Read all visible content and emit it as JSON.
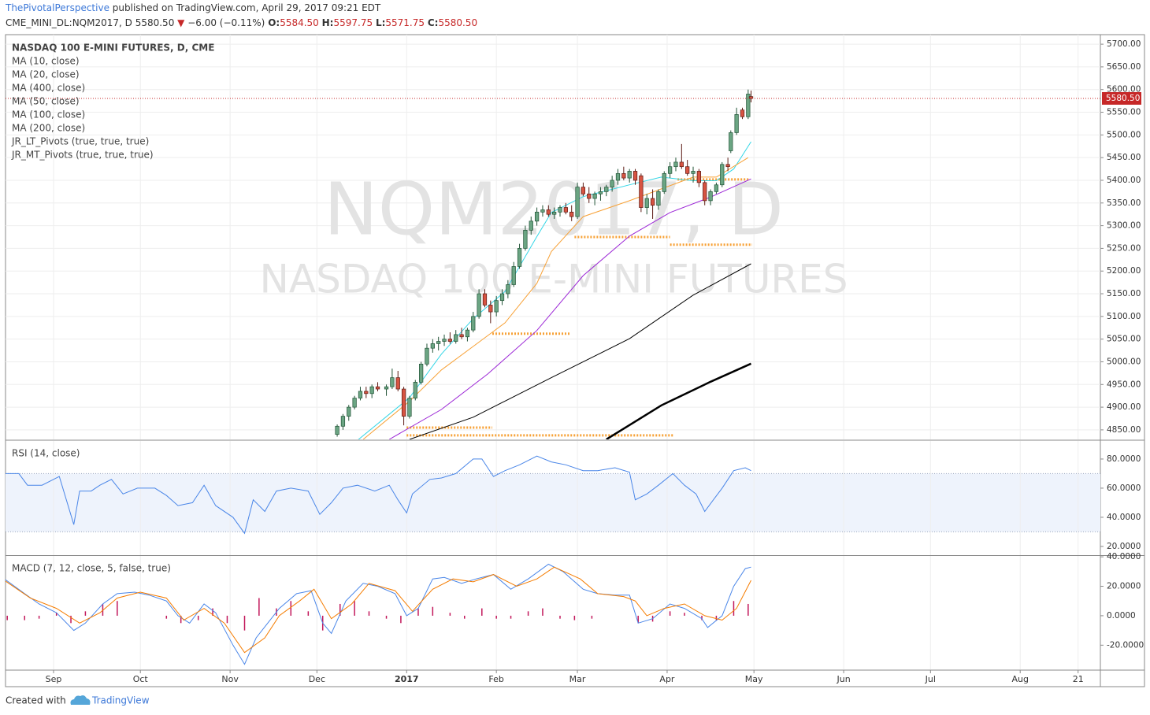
{
  "header": {
    "author": "ThePivotalPerspective",
    "published": "published on TradingView.com, April 29, 2017 09:21 EDT",
    "symbol": "CME_MINI_DL:NQM2017, D",
    "last": "5580.50",
    "arrow": "▼",
    "change": "−6.00 (−0.11%)",
    "o_key": "O:",
    "o": "5584.50",
    "h_key": "H:",
    "h": "5597.75",
    "l_key": "L:",
    "l": "5571.75",
    "c_key": "C:",
    "c": "5580.50"
  },
  "footer": {
    "created": "Created with",
    "brand": "TradingView"
  },
  "chart_data": [
    {
      "type": "candlestick",
      "legend": [
        "NASDAQ 100 E-MINI FUTURES, D, CME",
        "MA (10, close)",
        "MA (20, close)",
        "MA (400, close)",
        "MA (50, close)",
        "MA (100, close)",
        "MA (200, close)",
        "JR_LT_Pivots (true, true, true)",
        "JR_MT_Pivots (true, true, true)"
      ],
      "watermark": [
        "NQM2017, D",
        "NASDAQ 100 E-MINI FUTURES"
      ],
      "xlim": [
        -16.6,
        361.7
      ],
      "xticks": [
        {
          "value": 0,
          "label": "Sep"
        },
        {
          "value": 30,
          "label": "Oct"
        },
        {
          "value": 61,
          "label": "Nov"
        },
        {
          "value": 91,
          "label": "Dec"
        },
        {
          "value": 122,
          "label": "2017"
        },
        {
          "value": 153,
          "label": "Feb"
        },
        {
          "value": 181,
          "label": "Mar"
        },
        {
          "value": 212,
          "label": "Apr"
        },
        {
          "value": 242,
          "label": "May"
        },
        {
          "value": 273,
          "label": "Jun"
        },
        {
          "value": 303,
          "label": "Jul"
        },
        {
          "value": 334,
          "label": "Aug"
        },
        {
          "value": 354,
          "label": "21"
        }
      ],
      "ylim": [
        4829,
        5721
      ],
      "yticks": [
        {
          "value": 4850,
          "label": "4850.00"
        },
        {
          "value": 4900,
          "label": "4900.00"
        },
        {
          "value": 4950,
          "label": "4950.00"
        },
        {
          "value": 5000,
          "label": "5000.00"
        },
        {
          "value": 5050,
          "label": "5050.00"
        },
        {
          "value": 5100,
          "label": "5100.00"
        },
        {
          "value": 5150,
          "label": "5150.00"
        },
        {
          "value": 5200,
          "label": "5200.00"
        },
        {
          "value": 5250,
          "label": "5250.00"
        },
        {
          "value": 5300,
          "label": "5300.00"
        },
        {
          "value": 5350,
          "label": "5350.00"
        },
        {
          "value": 5400,
          "label": "5400.00"
        },
        {
          "value": 5450,
          "label": "5450.00"
        },
        {
          "value": 5500,
          "label": "5500.00"
        },
        {
          "value": 5550,
          "label": "5550.00"
        },
        {
          "value": 5600,
          "label": "5600.00"
        },
        {
          "value": 5650,
          "label": "5650.00"
        },
        {
          "value": 5700,
          "label": "5700.00"
        }
      ],
      "grid": true,
      "up_color": "#6ba583",
      "down_color": "#d75442",
      "last_price": {
        "value": 5580.5,
        "label": "5580.50",
        "color": "#c62828"
      },
      "x": [
        98,
        100,
        102,
        104,
        106,
        108,
        110,
        112,
        115,
        117,
        119,
        121,
        123,
        125,
        127,
        129,
        131,
        133,
        135,
        137,
        139,
        141,
        143,
        145,
        147,
        149,
        151,
        153,
        155,
        157,
        159,
        161,
        163,
        165,
        167,
        169,
        171,
        173,
        175,
        177,
        179,
        181,
        183,
        185,
        187,
        189,
        191,
        193,
        195,
        197,
        199,
        201,
        203,
        205,
        207,
        209,
        211,
        213,
        215,
        217,
        219,
        221,
        223,
        225,
        227,
        229,
        231,
        233,
        234,
        236,
        238,
        240,
        241
      ],
      "open": [
        4840,
        4858,
        4880,
        4900,
        4920,
        4935,
        4930,
        4945,
        4940,
        4945,
        4965,
        4940,
        4880,
        4920,
        4955,
        4995,
        5030,
        5040,
        5045,
        5050,
        5045,
        5060,
        5055,
        5070,
        5100,
        5150,
        5125,
        5110,
        5135,
        5150,
        5170,
        5210,
        5250,
        5290,
        5310,
        5330,
        5335,
        5325,
        5330,
        5340,
        5330,
        5320,
        5385,
        5370,
        5360,
        5370,
        5375,
        5385,
        5400,
        5415,
        5405,
        5420,
        5410,
        5340,
        5360,
        5345,
        5375,
        5415,
        5430,
        5440,
        5430,
        5415,
        5420,
        5395,
        5355,
        5375,
        5390,
        5435,
        5465,
        5505,
        5555,
        5540,
        5584.5
      ],
      "high": [
        4862,
        4885,
        4905,
        4925,
        4945,
        4945,
        4950,
        4955,
        4950,
        4985,
        4980,
        4945,
        4925,
        4960,
        5000,
        5040,
        5050,
        5055,
        5060,
        5065,
        5070,
        5075,
        5075,
        5110,
        5160,
        5160,
        5135,
        5145,
        5160,
        5180,
        5220,
        5260,
        5300,
        5320,
        5340,
        5345,
        5345,
        5340,
        5345,
        5350,
        5345,
        5395,
        5395,
        5385,
        5375,
        5385,
        5390,
        5410,
        5425,
        5430,
        5425,
        5425,
        5415,
        5370,
        5380,
        5380,
        5420,
        5440,
        5450,
        5480,
        5445,
        5430,
        5425,
        5400,
        5380,
        5395,
        5440,
        5450,
        5510,
        5560,
        5560,
        5600,
        5597.75
      ],
      "low": [
        4835,
        4850,
        4870,
        4895,
        4915,
        4920,
        4920,
        4935,
        4925,
        4940,
        4935,
        4860,
        4875,
        4915,
        4950,
        4990,
        5020,
        5025,
        5035,
        5040,
        5040,
        5050,
        5045,
        5065,
        5095,
        5120,
        5085,
        5100,
        5125,
        5140,
        5165,
        5205,
        5245,
        5280,
        5300,
        5320,
        5320,
        5315,
        5320,
        5325,
        5310,
        5315,
        5365,
        5350,
        5345,
        5355,
        5365,
        5375,
        5390,
        5400,
        5395,
        5390,
        5330,
        5325,
        5315,
        5335,
        5370,
        5405,
        5420,
        5425,
        5410,
        5395,
        5385,
        5345,
        5345,
        5370,
        5385,
        5420,
        5460,
        5500,
        5535,
        5535,
        5571.75
      ],
      "close": [
        4858,
        4880,
        4900,
        4920,
        4935,
        4930,
        4945,
        4940,
        4945,
        4965,
        4940,
        4880,
        4920,
        4955,
        4995,
        5030,
        5040,
        5045,
        5050,
        5045,
        5060,
        5055,
        5070,
        5100,
        5150,
        5125,
        5110,
        5135,
        5150,
        5170,
        5210,
        5250,
        5290,
        5310,
        5330,
        5335,
        5325,
        5330,
        5340,
        5330,
        5320,
        5385,
        5370,
        5360,
        5370,
        5375,
        5385,
        5400,
        5415,
        5405,
        5420,
        5400,
        5340,
        5360,
        5345,
        5375,
        5415,
        5430,
        5440,
        5430,
        5415,
        5420,
        5395,
        5355,
        5375,
        5390,
        5435,
        5430,
        5505,
        5545,
        5540,
        5590,
        5580.5
      ],
      "series": [
        {
          "color": "#33d6e6",
          "width": 1,
          "x": [
            105,
            123,
            134,
            145,
            156,
            167,
            172,
            183,
            199,
            210,
            221,
            229,
            235,
            241
          ],
          "values": [
            4827,
            4921,
            5017,
            5095,
            5155,
            5276,
            5329,
            5364,
            5390,
            5407,
            5399,
            5399,
            5425,
            5485
          ]
        },
        {
          "color": "#f7a136",
          "width": 1,
          "x": [
            107,
            123,
            134,
            145,
            156,
            167,
            172,
            183,
            199,
            210,
            221,
            229,
            240
          ],
          "values": [
            4829,
            4913,
            4982,
            5034,
            5086,
            5173,
            5243,
            5320,
            5355,
            5381,
            5407,
            5407,
            5450
          ]
        },
        {
          "color": "#9c27d6",
          "width": 1,
          "x": [
            116,
            134,
            150,
            167,
            183,
            199,
            213,
            227,
            241
          ],
          "values": [
            4829,
            4895,
            4973,
            5069,
            5190,
            5277,
            5329,
            5363,
            5403
          ]
        },
        {
          "color": "#000000",
          "width": 1,
          "x": [
            123,
            145,
            172,
            199,
            221,
            241
          ],
          "values": [
            4829,
            4878,
            4965,
            5051,
            5147,
            5216
          ]
        },
        {
          "color": "#000000",
          "width": 2.5,
          "x": [
            191,
            210,
            227,
            241
          ],
          "values": [
            4829,
            4904,
            4956,
            4996
          ]
        }
      ],
      "pivots": {
        "color": "#f7a136",
        "x": [
          [
            215.6,
            240.6
          ],
          [
            180,
            213
          ],
          [
            213,
            241.4
          ],
          [
            151.6,
            178.8
          ],
          [
            122,
            151.6
          ],
          [
            122,
            214
          ]
        ],
        "values": [
          5402,
          5275,
          5258,
          5062,
          4855,
          4838
        ]
      }
    },
    {
      "type": "line",
      "label": "RSI (14, close)",
      "xlim": [
        -16.6,
        361.7
      ],
      "ylim": [
        14,
        92.4
      ],
      "yticks": [
        {
          "value": 20,
          "label": "20.0000"
        },
        {
          "value": 40,
          "label": "40.0000"
        },
        {
          "value": 60,
          "label": "60.0000"
        },
        {
          "value": 80,
          "label": "80.0000"
        }
      ],
      "band": [
        30,
        70
      ],
      "band_color": "#eef3fc",
      "series": [
        {
          "color": "#4a86e8",
          "width": 1,
          "x": [
            -17,
            -12,
            -9,
            -4,
            2,
            7,
            9,
            13,
            16,
            20,
            24,
            29,
            35,
            39,
            43,
            48,
            52,
            56,
            62,
            66,
            69,
            73,
            77,
            82,
            88,
            92,
            96,
            100,
            105,
            111,
            116,
            119,
            122,
            124,
            130,
            134,
            139,
            145,
            148,
            152,
            156,
            161,
            167,
            172,
            177,
            183,
            188,
            194,
            199,
            201,
            205,
            209,
            214,
            218,
            222,
            225,
            228,
            231,
            235,
            239,
            241
          ],
          "values": [
            70,
            70,
            62,
            62,
            68,
            35,
            58,
            58,
            62,
            66,
            56,
            60,
            60,
            55,
            48,
            50,
            62,
            48,
            40,
            29,
            52,
            44,
            58,
            60,
            58,
            42,
            50,
            60,
            62,
            58,
            62,
            52,
            43,
            56,
            66,
            67,
            70,
            80,
            80,
            68,
            72,
            76,
            82,
            78,
            76,
            72,
            72,
            74,
            71,
            52,
            56,
            62,
            70,
            62,
            56,
            44,
            52,
            60,
            72,
            74,
            72
          ]
        }
      ]
    },
    {
      "type": "line",
      "label": "MACD (7, 12, close, 5, false, true)",
      "xlim": [
        -16.6,
        361.7
      ],
      "ylim": [
        -36.4,
        40.6
      ],
      "yticks": [
        {
          "value": -20,
          "label": "-20.0000"
        },
        {
          "value": 0,
          "label": "0.0000"
        },
        {
          "value": 20,
          "label": "20.0000"
        },
        {
          "value": 40,
          "label": "40.0000"
        }
      ],
      "series": [
        {
          "style": "histogram",
          "color": "#c2185b",
          "width": 1.5,
          "x": [
            -16,
            -10,
            -5,
            1,
            6,
            11,
            17,
            22,
            28,
            33,
            39,
            44,
            50,
            55,
            60,
            66,
            71,
            77,
            82,
            88,
            93,
            99,
            104,
            109,
            115,
            120,
            126,
            131,
            137,
            142,
            148,
            153,
            158,
            164,
            169,
            175,
            180,
            186,
            191,
            197,
            202,
            207,
            213,
            218,
            224,
            229,
            235,
            240
          ],
          "values": [
            -3,
            -3,
            -2,
            2,
            -5,
            3,
            8,
            10,
            0,
            0,
            -2,
            -5,
            -3,
            5,
            -5,
            -10,
            12,
            5,
            10,
            3,
            -10,
            8,
            10,
            3,
            -2,
            -5,
            5,
            6,
            2,
            -2,
            5,
            -2,
            -2,
            3,
            5,
            -2,
            -3,
            -2,
            0,
            0,
            -5,
            -4,
            3,
            2,
            -3,
            -3,
            10,
            8
          ]
        },
        {
          "color": "#4a86e8",
          "width": 1,
          "x": [
            -17,
            -10,
            -5,
            1,
            7,
            11,
            17,
            22,
            28,
            33,
            39,
            43,
            47,
            52,
            56,
            62,
            66,
            70,
            74,
            78,
            84,
            89,
            93,
            96,
            101,
            107,
            112,
            118,
            122,
            126,
            131,
            135,
            141,
            146,
            152,
            158,
            164,
            171,
            176,
            183,
            188,
            194,
            199,
            202,
            207,
            213,
            218,
            224,
            226,
            231,
            235,
            239,
            241
          ],
          "values": [
            25,
            15,
            8,
            2,
            -10,
            -5,
            8,
            15,
            16,
            14,
            10,
            0,
            -5,
            8,
            2,
            -20,
            -33,
            -15,
            -5,
            5,
            15,
            17,
            -5,
            -12,
            10,
            22,
            20,
            15,
            0,
            5,
            25,
            26,
            22,
            25,
            28,
            18,
            25,
            35,
            30,
            18,
            15,
            14,
            14,
            -5,
            -2,
            8,
            5,
            -2,
            -8,
            0,
            20,
            32,
            33
          ]
        },
        {
          "color": "#f57c00",
          "width": 1,
          "x": [
            -17,
            -8,
            1,
            9,
            16,
            22,
            30,
            39,
            45,
            52,
            59,
            66,
            73,
            78,
            85,
            90,
            96,
            103,
            109,
            118,
            124,
            131,
            138,
            145,
            152,
            160,
            167,
            173,
            182,
            188,
            197,
            201,
            205,
            211,
            218,
            225,
            231,
            236,
            241
          ],
          "values": [
            24,
            12,
            5,
            -5,
            2,
            12,
            16,
            12,
            -3,
            5,
            -5,
            -25,
            -15,
            0,
            10,
            18,
            -2,
            8,
            22,
            17,
            3,
            18,
            25,
            23,
            28,
            20,
            25,
            33,
            25,
            15,
            13,
            10,
            0,
            5,
            8,
            0,
            -3,
            5,
            24
          ]
        }
      ]
    }
  ]
}
